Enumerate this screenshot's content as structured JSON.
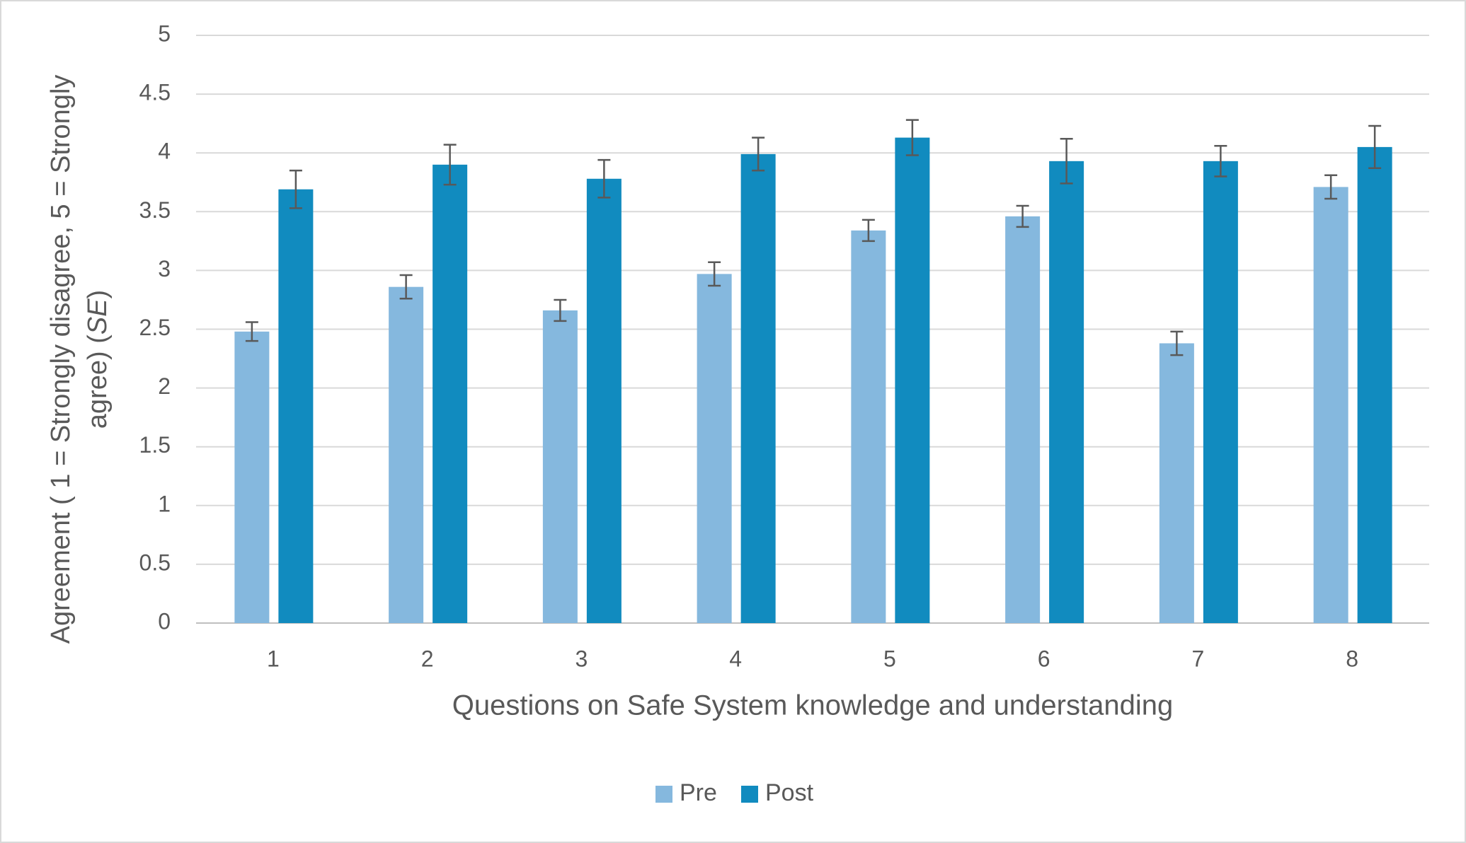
{
  "chart_data": {
    "type": "bar",
    "ylabel": [
      "Agreement ( 1 = Strongly disagree, 5 = Strongly",
      "agree) (",
      "SE",
      ")"
    ],
    "xlabel": "Questions on Safe System knowledge and understanding",
    "categories": [
      "1",
      "2",
      "3",
      "4",
      "5",
      "6",
      "7",
      "8"
    ],
    "series": [
      {
        "name": "Pre",
        "color": "#85b8de",
        "values": [
          2.48,
          2.86,
          2.66,
          2.97,
          3.34,
          3.46,
          2.38,
          3.71
        ],
        "errors": [
          0.08,
          0.1,
          0.09,
          0.1,
          0.09,
          0.09,
          0.1,
          0.1
        ]
      },
      {
        "name": "Post",
        "color": "#118bbf",
        "values": [
          3.69,
          3.9,
          3.78,
          3.99,
          4.13,
          3.93,
          3.93,
          4.05
        ],
        "errors": [
          0.16,
          0.17,
          0.16,
          0.14,
          0.15,
          0.19,
          0.13,
          0.18
        ]
      }
    ],
    "ylim": [
      0,
      5
    ],
    "yticks": [
      0,
      0.5,
      1,
      1.5,
      2,
      2.5,
      3,
      3.5,
      4,
      4.5,
      5
    ],
    "grid": true,
    "legend": "bottom"
  }
}
